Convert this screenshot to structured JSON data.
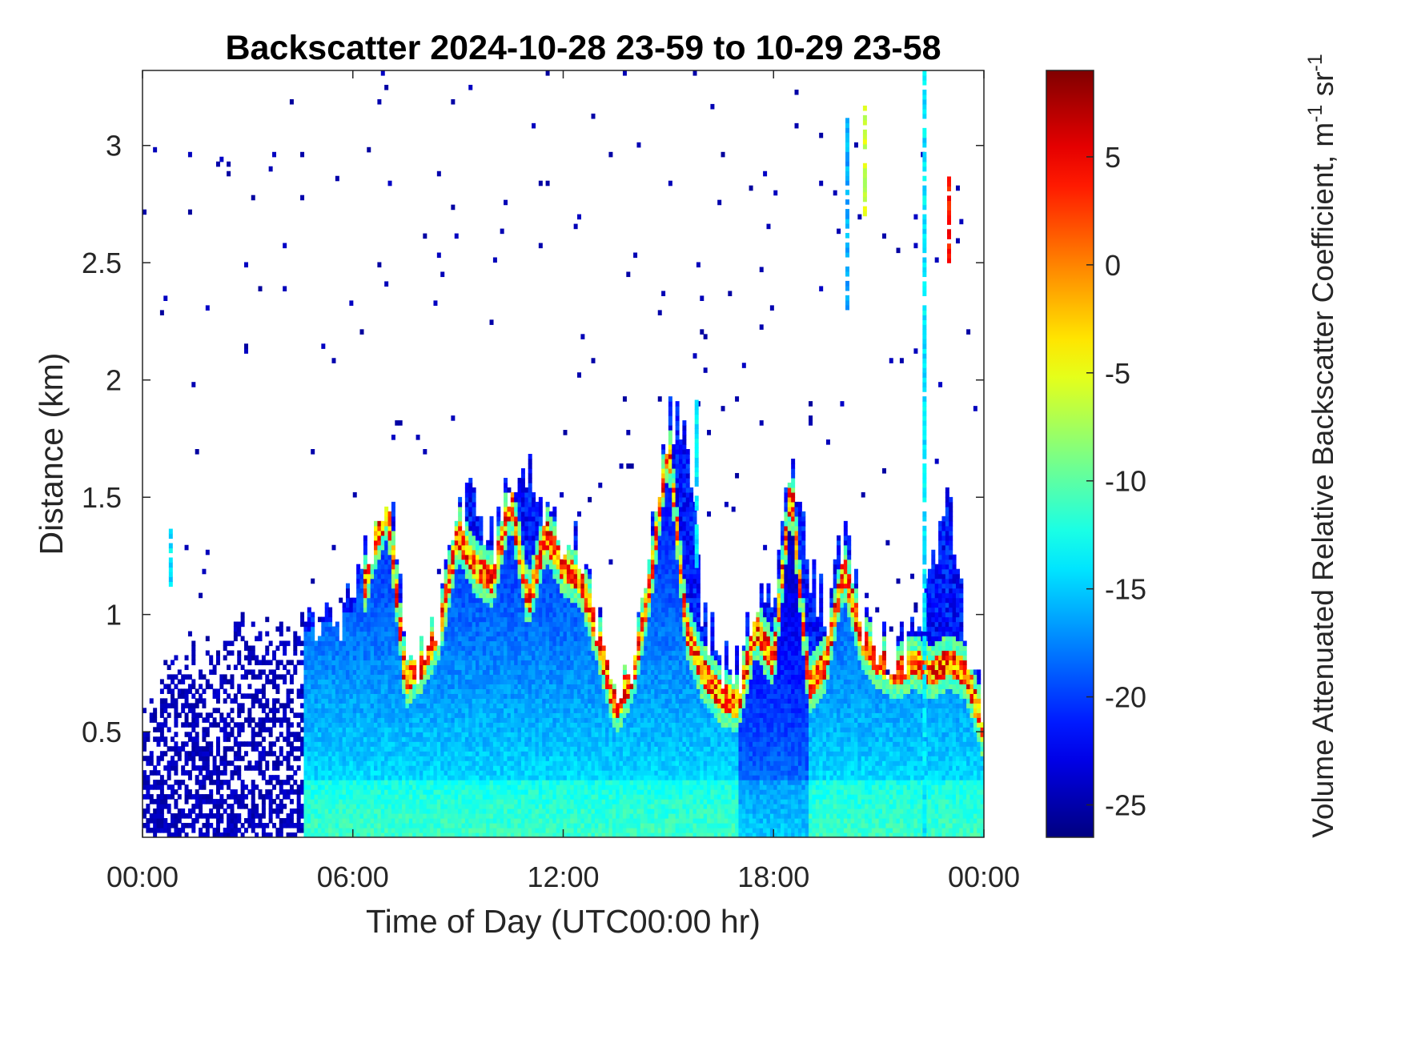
{
  "chart_data": {
    "type": "heatmap",
    "title": "Backscatter 2024-10-28 23-59 to 10-29 23-58",
    "xlabel": "Time of Day (UTC00:00 hr)",
    "ylabel": "Distance (km)",
    "colorbar_label": "Volume Attenuated Relative Backscatter Coefficient, m",
    "colorbar_unit_sup1": "-1",
    "colorbar_unit_mid": " sr",
    "colorbar_unit_sup2": "-1",
    "xlim": [
      0,
      24
    ],
    "ylim": [
      0.05,
      3.32
    ],
    "clim": [
      -26.5,
      9
    ],
    "colormap": "jet",
    "x_ticks": [
      {
        "value": 0,
        "label": "00:00"
      },
      {
        "value": 6,
        "label": "06:00"
      },
      {
        "value": 12,
        "label": "12:00"
      },
      {
        "value": 18,
        "label": "18:00"
      },
      {
        "value": 24,
        "label": "00:00"
      }
    ],
    "y_ticks": [
      {
        "value": 0.5,
        "label": "0.5"
      },
      {
        "value": 1,
        "label": "1"
      },
      {
        "value": 1.5,
        "label": "1.5"
      },
      {
        "value": 2,
        "label": "2"
      },
      {
        "value": 2.5,
        "label": "2.5"
      },
      {
        "value": 3,
        "label": "3"
      }
    ],
    "colorbar_ticks": [
      {
        "value": -25,
        "label": "-25"
      },
      {
        "value": -20,
        "label": "-20"
      },
      {
        "value": -15,
        "label": "-15"
      },
      {
        "value": -10,
        "label": "-10"
      },
      {
        "value": -5,
        "label": "-5"
      },
      {
        "value": 0,
        "label": "0"
      },
      {
        "value": 5,
        "label": "5"
      }
    ],
    "time_bins": 240,
    "range_bins": 160,
    "cloud_top_profile": [
      [
        0,
        0.55
      ],
      [
        0.5,
        0.7
      ],
      [
        1,
        0.85
      ],
      [
        2,
        0.85
      ],
      [
        3,
        0.9
      ],
      [
        4,
        0.95
      ],
      [
        4.6,
        0.95
      ],
      [
        5,
        0.95
      ],
      [
        6,
        1.05
      ],
      [
        6.5,
        1.3
      ],
      [
        7,
        1.55
      ],
      [
        7.3,
        1.3
      ],
      [
        7.5,
        0.75
      ],
      [
        8,
        0.85
      ],
      [
        8.5,
        1.0
      ],
      [
        9,
        1.45
      ],
      [
        9.5,
        1.5
      ],
      [
        10,
        1.3
      ],
      [
        10.5,
        1.55
      ],
      [
        11,
        1.6
      ],
      [
        11.5,
        1.45
      ],
      [
        12,
        1.35
      ],
      [
        12.5,
        1.3
      ],
      [
        13,
        0.95
      ],
      [
        13.5,
        0.65
      ],
      [
        14,
        0.8
      ],
      [
        14.5,
        1.3
      ],
      [
        15,
        1.85
      ],
      [
        15.5,
        1.75
      ],
      [
        16,
        1.0
      ],
      [
        16.5,
        0.8
      ],
      [
        17,
        0.75
      ],
      [
        17.5,
        1.05
      ],
      [
        18,
        1.1
      ],
      [
        18.5,
        1.7
      ],
      [
        19,
        1.2
      ],
      [
        19.5,
        1.0
      ],
      [
        20,
        1.35
      ],
      [
        20.5,
        0.95
      ],
      [
        21,
        0.85
      ],
      [
        21.5,
        0.85
      ],
      [
        22,
        0.9
      ],
      [
        22.4,
        1.1
      ],
      [
        22.7,
        1.3
      ],
      [
        23,
        1.45
      ],
      [
        23.5,
        0.9
      ],
      [
        24,
        0.55
      ]
    ],
    "strong_layer_profile": [
      [
        0,
        0.5
      ],
      [
        6,
        0.9
      ],
      [
        6.6,
        1.3
      ],
      [
        7,
        1.45
      ],
      [
        7.5,
        0.72
      ],
      [
        8,
        0.8
      ],
      [
        8.5,
        0.95
      ],
      [
        9,
        1.35
      ],
      [
        9.5,
        1.2
      ],
      [
        10,
        1.15
      ],
      [
        10.5,
        1.5
      ],
      [
        11,
        1.05
      ],
      [
        11.5,
        1.35
      ],
      [
        12,
        1.2
      ],
      [
        12.5,
        1.15
      ],
      [
        13,
        0.9
      ],
      [
        13.5,
        0.6
      ],
      [
        14,
        0.75
      ],
      [
        14.5,
        1.15
      ],
      [
        15,
        1.75
      ],
      [
        15.5,
        0.95
      ],
      [
        16,
        0.75
      ],
      [
        16.5,
        0.65
      ],
      [
        17,
        0.62
      ],
      [
        17.5,
        0.95
      ],
      [
        18,
        0.8
      ],
      [
        18.5,
        1.55
      ],
      [
        19,
        0.7
      ],
      [
        19.5,
        0.8
      ],
      [
        20,
        1.2
      ],
      [
        20.5,
        0.9
      ],
      [
        21,
        0.8
      ],
      [
        21.5,
        0.75
      ],
      [
        22,
        0.8
      ],
      [
        22.5,
        0.75
      ],
      [
        23,
        0.8
      ],
      [
        23.5,
        0.75
      ],
      [
        24,
        0.5
      ]
    ],
    "plumes": [
      {
        "x": 0.8,
        "y_bottom": 1.1,
        "y_top": 1.38,
        "value": -14
      },
      {
        "x": 20.1,
        "y_bottom": 2.3,
        "y_top": 3.1,
        "value": -16
      },
      {
        "x": 20.6,
        "y_bottom": 2.7,
        "y_top": 3.15,
        "value": -6
      },
      {
        "x": 22.3,
        "y_bottom": 0.05,
        "y_top": 3.32,
        "value": -14
      },
      {
        "x": 15.8,
        "y_bottom": 1.2,
        "y_top": 1.9,
        "value": -14
      },
      {
        "x": 23.0,
        "y_bottom": 2.5,
        "y_top": 2.85,
        "value": 4
      }
    ]
  }
}
